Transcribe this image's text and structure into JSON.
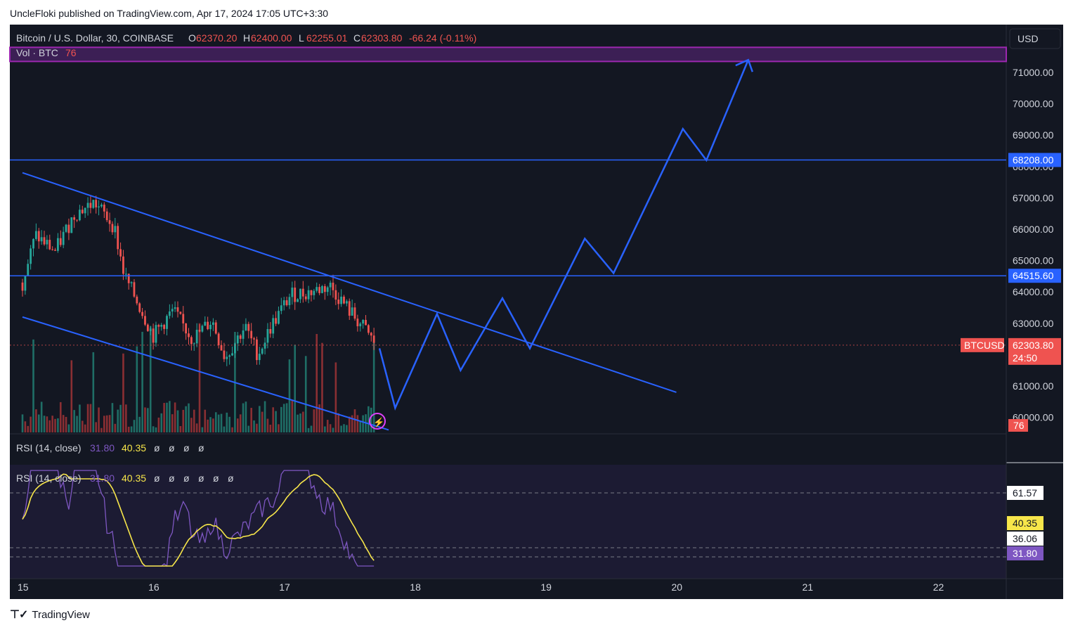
{
  "header": {
    "published": "UncleFloki published on TradingView.com, Apr 17, 2024 17:05 UTC+3:30"
  },
  "footer": {
    "brand": "TradingView",
    "logo": "tradingview-logo-icon"
  },
  "colors": {
    "background": "#131722",
    "up": "#26a69a",
    "down": "#ef5350",
    "line": "#2962ff",
    "rsi": "#7e57c2",
    "rsi_ma": "#f7e64a",
    "band": "#9c27b0"
  },
  "legend": {
    "symbol": "Bitcoin / U.S. Dollar, 30, COINBASE",
    "o_label": "O",
    "o": "62370.20",
    "h_label": "H",
    "h": "62400.00",
    "l_label": "L",
    "l": "62255.01",
    "c_label": "C",
    "c": "62303.80",
    "change": "-66.24 (-0.11%)",
    "vol_label": "Vol · BTC",
    "vol": "76"
  },
  "currency_button": "USD",
  "rsi_panel": {
    "title": "RSI (14, close)",
    "rsi": "31.80",
    "ma": "40.35",
    "nan": [
      "ø",
      "ø",
      "ø",
      "ø"
    ],
    "title2": "RSI (14, close)",
    "rsi2": "31.80",
    "ma2": "40.35",
    "nan2": [
      "ø",
      "ø",
      "ø",
      "ø",
      "ø",
      "ø"
    ]
  },
  "price_axis": {
    "ticks": [
      "71000.00",
      "70000.00",
      "69000.00",
      "68000.00",
      "67000.00",
      "66000.00",
      "65000.00",
      "64000.00",
      "63000.00",
      "62000.00",
      "61000.00",
      "60000.00"
    ],
    "levels": [
      "68208.00",
      "64515.60"
    ],
    "last_symbol": "BTCUSD",
    "last_price": "62303.80",
    "countdown": "24:50",
    "volume_badge": "76"
  },
  "rsi_axis": {
    "upper": "61.57",
    "ma": "40.35",
    "mid": "36.06",
    "rsi": "31.80"
  },
  "time_axis": [
    "15",
    "16",
    "17",
    "18",
    "19",
    "20",
    "21",
    "22"
  ],
  "chart_data": {
    "type": "candlestick",
    "symbol": "Bitcoin / U.S. Dollar",
    "interval": "30",
    "exchange": "COINBASE",
    "x_range_days": [
      "15",
      "22"
    ],
    "y_range": [
      59600,
      71900
    ],
    "horizontal_levels": [
      68208.0,
      64515.6
    ],
    "resistance_band": [
      71350,
      71800
    ],
    "last_close": 62303.8,
    "price_path": [
      {
        "day": 15.0,
        "close": 64300
      },
      {
        "day": 15.1,
        "close": 65800
      },
      {
        "day": 15.25,
        "close": 65300
      },
      {
        "day": 15.4,
        "close": 66500
      },
      {
        "day": 15.55,
        "close": 66850
      },
      {
        "day": 15.7,
        "close": 66100
      },
      {
        "day": 15.78,
        "close": 64500
      },
      {
        "day": 15.9,
        "close": 63500
      },
      {
        "day": 16.0,
        "close": 62600
      },
      {
        "day": 16.15,
        "close": 63400
      },
      {
        "day": 16.3,
        "close": 62500
      },
      {
        "day": 16.45,
        "close": 63100
      },
      {
        "day": 16.55,
        "close": 61900
      },
      {
        "day": 16.7,
        "close": 62900
      },
      {
        "day": 16.8,
        "close": 62000
      },
      {
        "day": 16.9,
        "close": 62900
      },
      {
        "day": 17.05,
        "close": 63900
      },
      {
        "day": 17.2,
        "close": 64000
      },
      {
        "day": 17.35,
        "close": 64200
      },
      {
        "day": 17.5,
        "close": 63400
      },
      {
        "day": 17.62,
        "close": 62800
      },
      {
        "day": 17.7,
        "close": 62303.8
      }
    ],
    "projection_path": [
      {
        "day": 17.73,
        "price": 62200
      },
      {
        "day": 17.85,
        "price": 60300
      },
      {
        "day": 18.17,
        "price": 63300
      },
      {
        "day": 18.35,
        "price": 61500
      },
      {
        "day": 18.67,
        "price": 63800
      },
      {
        "day": 18.88,
        "price": 62200
      },
      {
        "day": 19.3,
        "price": 65700
      },
      {
        "day": 19.52,
        "price": 64600
      },
      {
        "day": 20.05,
        "price": 69200
      },
      {
        "day": 20.23,
        "price": 68200
      },
      {
        "day": 20.55,
        "price": 71400
      }
    ],
    "channel_upper": [
      {
        "day": 15.0,
        "price": 67800
      },
      {
        "day": 20.0,
        "price": 60800
      }
    ],
    "channel_lower": [
      {
        "day": 15.0,
        "price": 63200
      },
      {
        "day": 17.8,
        "price": 59600
      }
    ],
    "rsi": {
      "length": 14,
      "source": "close",
      "value": 31.8,
      "ma": 40.35,
      "levels": [
        61.57,
        36.06
      ]
    }
  }
}
